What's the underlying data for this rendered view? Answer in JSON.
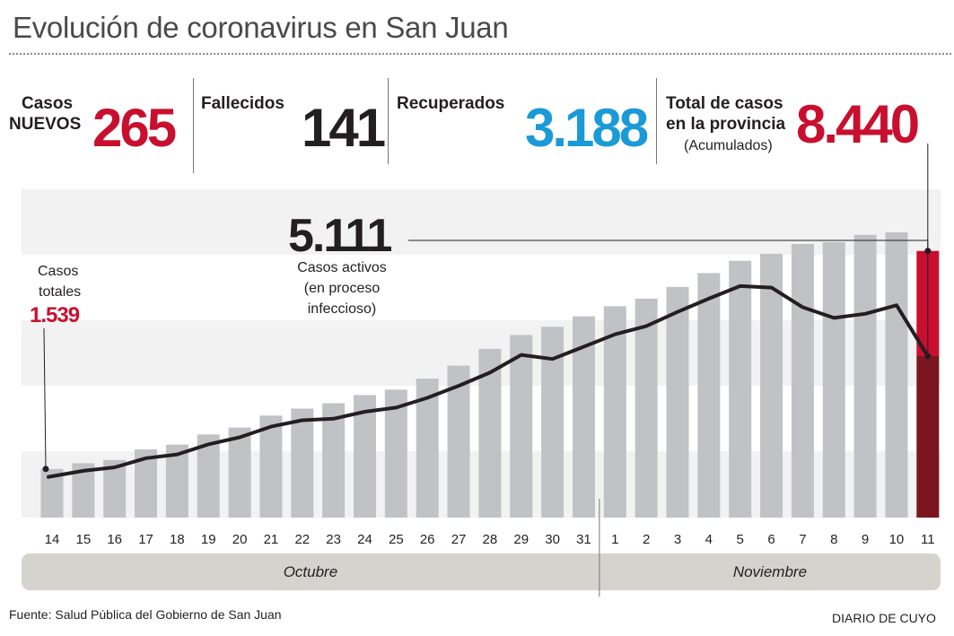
{
  "header": {
    "title": "Evolución de coronavirus en San Juan"
  },
  "stats": {
    "nuevos": {
      "label_line1": "Casos",
      "label_line2": "NUEVOS",
      "value": "265",
      "color": "#c8102e"
    },
    "fallecidos": {
      "label": "Fallecidos",
      "value": "141",
      "color": "#231f20"
    },
    "recuperados": {
      "label": "Recuperados",
      "value": "3.188",
      "color": "#1a9ad6"
    },
    "total": {
      "label_line1": "Total de casos",
      "label_line2": "en la provincia",
      "sublabel": "(Acumulados)",
      "value": "8.440",
      "color": "#c8102e"
    }
  },
  "chart_data": {
    "type": "bar",
    "title": "Evolución de coronavirus en San Juan",
    "categories": [
      "14",
      "15",
      "16",
      "17",
      "18",
      "19",
      "20",
      "21",
      "22",
      "23",
      "24",
      "25",
      "26",
      "27",
      "28",
      "29",
      "30",
      "31",
      "1",
      "2",
      "3",
      "4",
      "5",
      "6",
      "7",
      "8",
      "9",
      "10",
      "11"
    ],
    "months": [
      {
        "name": "Octubre",
        "from": "14",
        "to": "31"
      },
      {
        "name": "Noviembre",
        "from": "1",
        "to": "11"
      }
    ],
    "ylim": [
      0,
      9200
    ],
    "series": [
      {
        "name": "Casos totales",
        "type": "bar",
        "values": [
          1539,
          1720,
          1820,
          2160,
          2310,
          2630,
          2850,
          3230,
          3450,
          3620,
          3880,
          4050,
          4400,
          4810,
          5340,
          5780,
          6040,
          6370,
          6690,
          6930,
          7300,
          7740,
          8130,
          8350,
          8660,
          8720,
          8950,
          9030,
          8440
        ],
        "highlight_index": 28,
        "bar_color": "#c1c2c6",
        "highlight_color": "#c8102e",
        "highlight_dark_color": "#7b1620"
      },
      {
        "name": "Casos activos",
        "type": "line",
        "values": [
          1290,
          1480,
          1590,
          1880,
          2000,
          2320,
          2540,
          2880,
          3080,
          3130,
          3350,
          3480,
          3790,
          4170,
          4590,
          5150,
          5020,
          5410,
          5800,
          6060,
          6510,
          6930,
          7330,
          7280,
          6660,
          6320,
          6450,
          6720,
          5111
        ],
        "color": "#231f20"
      }
    ],
    "annotations": {
      "first_label_line1": "Casos",
      "first_label_line2": "totales",
      "first_value": "1.539",
      "active_value": "5.111",
      "active_label_line1": "Casos activos",
      "active_label_line2": "(en proceso",
      "active_label_line3": "infeccioso)"
    }
  },
  "footer": {
    "source": "Fuente: Salud Pública del Gobierno de San Juan",
    "brand": "DIARIO DE CUYO"
  }
}
